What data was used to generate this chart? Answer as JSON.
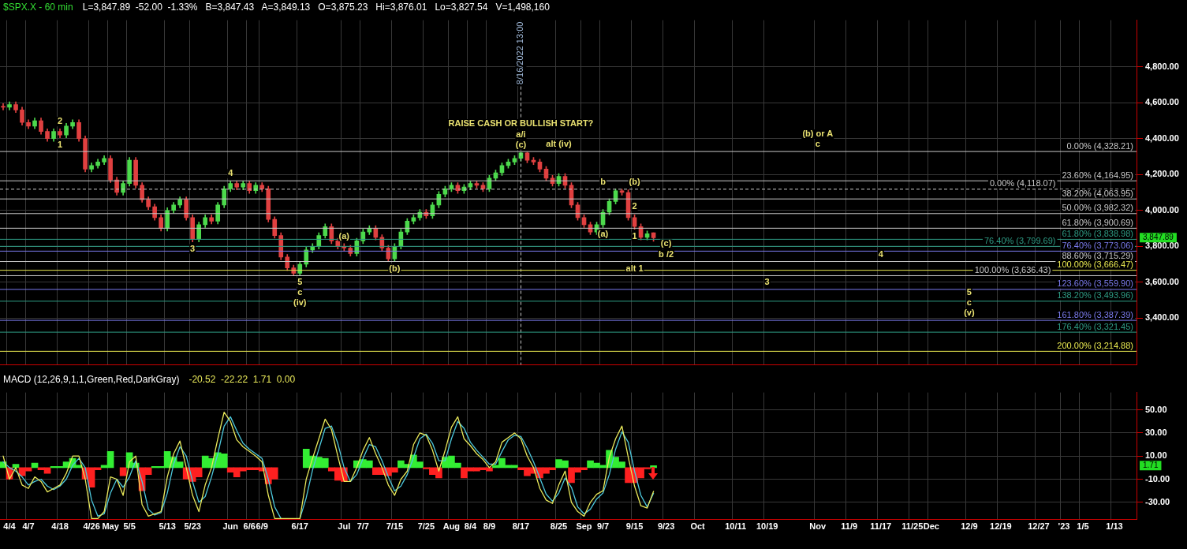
{
  "chart_data": [
    {
      "type": "candlestick",
      "title": "$SPX.X - 60 min",
      "subtitle": "L=3,847.89  -52.00  -1.33%   B=3,847.43   A=3,849.13   O=3,875.23   Hi=3,876.01   Lo=3,827.54   V=1,498,160",
      "categories": [
        null,
        "4/4",
        null,
        null,
        "4/7",
        null,
        null,
        null,
        null,
        "4/18",
        null,
        null,
        null,
        null,
        "4/26",
        null,
        null,
        "May",
        null,
        null,
        "5/5",
        null,
        null,
        null,
        null,
        null,
        "5/13",
        null,
        null,
        null,
        "5/23",
        null,
        null,
        null,
        null,
        null,
        "Jun",
        null,
        null,
        "6/6",
        null,
        "6/9",
        null,
        null,
        null,
        null,
        null,
        "6/17",
        null,
        null,
        null,
        null,
        null,
        null,
        "Jul",
        null,
        null,
        "7/7",
        null,
        null,
        null,
        null,
        "7/15",
        null,
        null,
        null,
        null,
        "7/25",
        null,
        null,
        null,
        "Aug",
        null,
        null,
        "8/4",
        null,
        null,
        "8/9",
        null,
        null,
        null,
        null,
        "8/17",
        null,
        null,
        null,
        null,
        null,
        "8/25",
        null,
        null,
        null,
        "Sep",
        null,
        null,
        "9/7",
        null,
        null,
        null,
        null,
        "9/15",
        null,
        null,
        null,
        null,
        "9/23",
        null,
        null,
        null,
        null,
        "Oct",
        null,
        null,
        null,
        null,
        null,
        "10/11",
        null,
        null,
        null,
        null,
        "10/19",
        null,
        null,
        null,
        null,
        null,
        null,
        null,
        "Nov",
        null,
        null,
        null,
        null,
        "11/9",
        null,
        null,
        null,
        null,
        "11/17",
        null,
        null,
        null,
        null,
        "11/25",
        null,
        null,
        "Dec",
        null,
        null,
        null,
        null,
        null,
        "12/9",
        null,
        null,
        null,
        null,
        "12/19",
        null,
        null,
        null,
        null,
        null,
        "12/27",
        null,
        null,
        null,
        "'23",
        null,
        null,
        "1/5",
        null,
        null,
        null,
        null,
        "1/13",
        null,
        null,
        null
      ],
      "ohlc": [
        [
          4580,
          4595,
          4560,
          4575
        ],
        [
          4575,
          4605,
          4560,
          4590
        ],
        [
          4590,
          4605,
          4545,
          4560
        ],
        [
          4560,
          4575,
          4475,
          4490
        ],
        [
          4490,
          4505,
          4455,
          4470
        ],
        [
          4470,
          4515,
          4455,
          4500
        ],
        [
          4500,
          4515,
          4425,
          4440
        ],
        [
          4440,
          4455,
          4385,
          4400
        ],
        [
          4400,
          4455,
          4385,
          4440
        ],
        [
          4440,
          4455,
          4405,
          4420
        ],
        [
          4420,
          4485,
          4405,
          4470
        ],
        [
          4470,
          4505,
          4455,
          4490
        ],
        [
          4490,
          4505,
          4385,
          4400
        ],
        [
          4400,
          4415,
          4215,
          4230
        ],
        [
          4230,
          4265,
          4215,
          4250
        ],
        [
          4250,
          4285,
          4235,
          4270
        ],
        [
          4270,
          4305,
          4255,
          4290
        ],
        [
          4290,
          4305,
          4155,
          4170
        ],
        [
          4170,
          4185,
          4085,
          4100
        ],
        [
          4100,
          4165,
          4085,
          4150
        ],
        [
          4150,
          4295,
          4135,
          4280
        ],
        [
          4280,
          4295,
          4125,
          4140
        ],
        [
          4140,
          4155,
          4045,
          4060
        ],
        [
          4060,
          4075,
          4005,
          4020
        ],
        [
          4020,
          4035,
          3945,
          3960
        ],
        [
          3960,
          3975,
          3885,
          3900
        ],
        [
          3900,
          4015,
          3885,
          4000
        ],
        [
          4000,
          4045,
          3985,
          4030
        ],
        [
          4030,
          4075,
          4015,
          4060
        ],
        [
          4060,
          4075,
          3945,
          3960
        ],
        [
          3960,
          3975,
          3825,
          3840
        ],
        [
          3840,
          3935,
          3825,
          3920
        ],
        [
          3920,
          3975,
          3905,
          3960
        ],
        [
          3960,
          3975,
          3925,
          3940
        ],
        [
          3940,
          4045,
          3925,
          4030
        ],
        [
          4030,
          4135,
          4015,
          4120
        ],
        [
          4120,
          4165,
          4105,
          4150
        ],
        [
          4150,
          4165,
          4115,
          4130
        ],
        [
          4130,
          4165,
          4115,
          4150
        ],
        [
          4150,
          4165,
          4095,
          4110
        ],
        [
          4110,
          4155,
          4095,
          4140
        ],
        [
          4140,
          4155,
          4105,
          4120
        ],
        [
          4120,
          4135,
          3935,
          3950
        ],
        [
          3950,
          3965,
          3845,
          3860
        ],
        [
          3860,
          3875,
          3725,
          3740
        ],
        [
          3740,
          3755,
          3665,
          3680
        ],
        [
          3680,
          3695,
          3636,
          3650
        ],
        [
          3650,
          3715,
          3640,
          3700
        ],
        [
          3700,
          3795,
          3685,
          3780
        ],
        [
          3780,
          3815,
          3765,
          3800
        ],
        [
          3800,
          3875,
          3785,
          3860
        ],
        [
          3860,
          3925,
          3845,
          3910
        ],
        [
          3910,
          3925,
          3815,
          3830
        ],
        [
          3830,
          3845,
          3785,
          3800
        ],
        [
          3800,
          3815,
          3775,
          3790
        ],
        [
          3790,
          3805,
          3745,
          3760
        ],
        [
          3760,
          3845,
          3745,
          3830
        ],
        [
          3830,
          3895,
          3815,
          3880
        ],
        [
          3880,
          3915,
          3865,
          3900
        ],
        [
          3900,
          3915,
          3835,
          3850
        ],
        [
          3850,
          3865,
          3775,
          3790
        ],
        [
          3790,
          3805,
          3715,
          3730
        ],
        [
          3730,
          3815,
          3715,
          3800
        ],
        [
          3800,
          3895,
          3785,
          3880
        ],
        [
          3880,
          3955,
          3865,
          3940
        ],
        [
          3940,
          3975,
          3925,
          3960
        ],
        [
          3960,
          4005,
          3945,
          3990
        ],
        [
          3990,
          4005,
          3955,
          3970
        ],
        [
          3970,
          4045,
          3955,
          4030
        ],
        [
          4030,
          4105,
          4015,
          4090
        ],
        [
          4090,
          4135,
          4075,
          4120
        ],
        [
          4120,
          4155,
          4105,
          4140
        ],
        [
          4140,
          4155,
          4095,
          4110
        ],
        [
          4110,
          4145,
          4095,
          4130
        ],
        [
          4130,
          4165,
          4115,
          4150
        ],
        [
          4150,
          4165,
          4125,
          4140
        ],
        [
          4140,
          4155,
          4105,
          4120
        ],
        [
          4120,
          4195,
          4105,
          4180
        ],
        [
          4180,
          4225,
          4165,
          4210
        ],
        [
          4210,
          4265,
          4195,
          4250
        ],
        [
          4250,
          4285,
          4235,
          4270
        ],
        [
          4270,
          4305,
          4255,
          4290
        ],
        [
          4290,
          4325,
          4275,
          4320
        ],
        [
          4320,
          4325,
          4265,
          4280
        ],
        [
          4280,
          4295,
          4255,
          4270
        ],
        [
          4270,
          4285,
          4215,
          4230
        ],
        [
          4230,
          4245,
          4165,
          4180
        ],
        [
          4180,
          4195,
          4135,
          4150
        ],
        [
          4150,
          4205,
          4135,
          4190
        ],
        [
          4190,
          4205,
          4125,
          4140
        ],
        [
          4140,
          4155,
          4015,
          4030
        ],
        [
          4030,
          4045,
          3945,
          3960
        ],
        [
          3960,
          3975,
          3905,
          3920
        ],
        [
          3920,
          3935,
          3865,
          3880
        ],
        [
          3880,
          3935,
          3865,
          3920
        ],
        [
          3920,
          4005,
          3905,
          3990
        ],
        [
          3990,
          4065,
          3975,
          4050
        ],
        [
          4050,
          4119,
          4035,
          4110
        ],
        [
          4110,
          4118,
          4085,
          4100
        ],
        [
          4100,
          4115,
          3945,
          3960
        ],
        [
          3960,
          3975,
          3895,
          3910
        ],
        [
          3910,
          3925,
          3835,
          3850
        ],
        [
          3850,
          3885,
          3835,
          3870
        ],
        [
          3875.23,
          3876.01,
          3827.54,
          3847.89
        ],
        null,
        null,
        null,
        null,
        null,
        null,
        null,
        null,
        null,
        null,
        null,
        null,
        null,
        null,
        null,
        null,
        null,
        null,
        null,
        null,
        null,
        null,
        null,
        null,
        null,
        null,
        null,
        null,
        null,
        null,
        null,
        null,
        null,
        null,
        null,
        null,
        null,
        null,
        null,
        null,
        null,
        null,
        null,
        null,
        null,
        null,
        null,
        null,
        null,
        null,
        null,
        null,
        null,
        null,
        null,
        null,
        null,
        null,
        null,
        null,
        null,
        null,
        null,
        null,
        null,
        null,
        null,
        null,
        null,
        null,
        null,
        null,
        null,
        null,
        null,
        null
      ],
      "colors": [
        "#e04040",
        "#4cd94c",
        "#e04040",
        "#e04040",
        "#e04040",
        "#4cd94c",
        "#e04040",
        "#e04040",
        "#4cd94c",
        "#e04040",
        "#4cd94c",
        "#4cd94c",
        "#e04040",
        "#e04040",
        "#4cd94c",
        "#4cd94c",
        "#4cd94c",
        "#e04040",
        "#e04040",
        "#4cd94c",
        "#4cd94c",
        "#e04040",
        "#e04040",
        "#e04040",
        "#e04040",
        "#e04040",
        "#4cd94c",
        "#4cd94c",
        "#4cd94c",
        "#e04040",
        "#e04040",
        "#4cd94c",
        "#4cd94c",
        "#e04040",
        "#4cd94c",
        "#4cd94c",
        "#4cd94c",
        "#e04040",
        "#4cd94c",
        "#e04040",
        "#4cd94c",
        "#e04040",
        "#e04040",
        "#e04040",
        "#e04040",
        "#e04040",
        "#e04040",
        "#4cd94c",
        "#4cd94c",
        "#4cd94c",
        "#4cd94c",
        "#4cd94c",
        "#e04040",
        "#e04040",
        "#e04040",
        "#e04040",
        "#4cd94c",
        "#4cd94c",
        "#4cd94c",
        "#e04040",
        "#e04040",
        "#e04040",
        "#4cd94c",
        "#4cd94c",
        "#4cd94c",
        "#4cd94c",
        "#4cd94c",
        "#e04040",
        "#4cd94c",
        "#4cd94c",
        "#4cd94c",
        "#4cd94c",
        "#e04040",
        "#4cd94c",
        "#4cd94c",
        "#e04040",
        "#e04040",
        "#4cd94c",
        "#4cd94c",
        "#4cd94c",
        "#4cd94c",
        "#4cd94c",
        "#4cd94c",
        "#e04040",
        "#e04040",
        "#e04040",
        "#e04040",
        "#e04040",
        "#4cd94c",
        "#e04040",
        "#e04040",
        "#e04040",
        "#e04040",
        "#e04040",
        "#4cd94c",
        "#4cd94c",
        "#4cd94c",
        "#4cd94c",
        "#e04040",
        "#e04040",
        "#e04040",
        "#e04040",
        "#4cd94c",
        "#e04040",
        null,
        null,
        null,
        null,
        null,
        null,
        null,
        null,
        null,
        null,
        null,
        null,
        null,
        null,
        null,
        null,
        null,
        null,
        null,
        null,
        null,
        null,
        null,
        null,
        null,
        null,
        null,
        null,
        null,
        null,
        null,
        null,
        null,
        null,
        null,
        null,
        null,
        null,
        null,
        null,
        null,
        null,
        null,
        null,
        null,
        null,
        null,
        null,
        null,
        null,
        null,
        null,
        null,
        null,
        null,
        null,
        null,
        null,
        null,
        null,
        null,
        null,
        null,
        null,
        null,
        null,
        null,
        null,
        null,
        null,
        null,
        null,
        null,
        null,
        null,
        null
      ],
      "ylim": [
        3140,
        5060
      ],
      "yticks": [
        {
          "value": 3400,
          "label": "3,400.00"
        },
        {
          "value": 3600,
          "label": "3,600.00"
        },
        {
          "value": 3800,
          "label": "3,800.00"
        },
        {
          "value": 4000,
          "label": "4,000.00"
        },
        {
          "value": 4200,
          "label": "4,200.00"
        },
        {
          "value": 4400,
          "label": "4,400.00"
        },
        {
          "value": 4600,
          "label": "4,600.00"
        },
        {
          "value": 4800,
          "label": "4,800.00"
        }
      ],
      "tick_labels": "y",
      "grid": true,
      "ref_lines": [
        {
          "axis": "x",
          "value": "8/17",
          "label": "8/16/2022 13:00",
          "color": "#c8c8c8",
          "line_style": "dashed"
        },
        {
          "axis": "y",
          "value": 4328.21,
          "label": "0.00% (4,328.21)",
          "color": "#c8c8c8"
        },
        {
          "axis": "y",
          "value": 4164.95,
          "label": "23.60% (4,164.95)",
          "color": "#c8c8c8"
        },
        {
          "axis": "y",
          "value": 4118.07,
          "label": "0.00% (4,118.07)",
          "color": "#c8c8c8",
          "line_style": "dashed"
        },
        {
          "axis": "y",
          "value": 4063.95,
          "label": "38.20% (4,063.95)",
          "color": "#c8c8c8"
        },
        {
          "axis": "y",
          "value": 3982.32,
          "label": "50.00% (3,982.32)",
          "color": "#c8c8c8"
        },
        {
          "axis": "y",
          "value": 3900.69,
          "label": "61.80% (3,900.69)",
          "color": "#c8c8c8"
        },
        {
          "axis": "y",
          "value": 3838.98,
          "label": "61.80% (3,838.98)",
          "color": "#2e9b84"
        },
        {
          "axis": "y",
          "value": 3799.69,
          "label": "76.40% (3,799.69)",
          "color": "#2e9b84"
        },
        {
          "axis": "y",
          "value": 3773.06,
          "label": "76.40% (3,773.06)",
          "color": "#7b7bee"
        },
        {
          "axis": "y",
          "value": 3715.29,
          "label": "88.60% (3,715.29)",
          "color": "#c8c8c8"
        },
        {
          "axis": "y",
          "value": 3666.47,
          "label": "100.00% (3,666.47)",
          "color": "#e8e850"
        },
        {
          "axis": "y",
          "value": 3636.43,
          "label": "100.00% (3,636.43)",
          "color": "#c8c8c8"
        },
        {
          "axis": "y",
          "value": 3559.9,
          "label": "123.60% (3,559.90)",
          "color": "#7b7bee"
        },
        {
          "axis": "y",
          "value": 3493.96,
          "label": "138.20% (3,493.96)",
          "color": "#2e9b84"
        },
        {
          "axis": "y",
          "value": 3387.39,
          "label": "161.80% (3,387.39)",
          "color": "#7b7bee"
        },
        {
          "axis": "y",
          "value": 3321.45,
          "label": "176.40% (3,321.45)",
          "color": "#2e9b84"
        },
        {
          "axis": "y",
          "value": 3214.88,
          "label": "200.00% (3,214.88)",
          "color": "#e8e850"
        }
      ],
      "annotations": [
        {
          "text": "1",
          "x": "4/18",
          "y": 4405
        },
        {
          "text": "2",
          "x": "4/18",
          "y": 4455
        },
        {
          "text": "3",
          "x": "5/23",
          "y": 3825
        },
        {
          "text": "4",
          "x": "Jun",
          "y": 4165
        },
        {
          "text": "5",
          "x": "6/17",
          "y": 3640
        },
        {
          "text": "c",
          "x": "6/17",
          "y": 3640
        },
        {
          "text": "(iv)",
          "x": "6/17",
          "y": 3640
        },
        {
          "text": "(a)",
          "x": "Jul",
          "y": 3815
        },
        {
          "text": "(b)",
          "x": "7/15",
          "y": 3715
        },
        {
          "text": "(c)",
          "x": "8/17",
          "y": 4325
        },
        {
          "text": "a/i",
          "x": "8/17",
          "y": 4325
        },
        {
          "text": "RAISE CASH OR BULLISH START?",
          "x": "8/17",
          "y": 4328.21
        },
        {
          "text": "alt (iv)",
          "x": "8/25",
          "y": 4328.21
        },
        {
          "text": "c",
          "x": "Nov",
          "y": 4328.21
        },
        {
          "text": "(b) or A",
          "x": "Nov",
          "y": 4328.21
        },
        {
          "text": "b",
          "x": "9/7",
          "y": 4118.07
        },
        {
          "text": "(b)",
          "x": "9/15",
          "y": 4118.07
        },
        {
          "text": "2",
          "x": "9/15",
          "y": 3982.32
        },
        {
          "text": "1",
          "x": "9/15",
          "y": 3895
        },
        {
          "text": "(a)",
          "x": "9/7",
          "y": 3905
        },
        {
          "text": "(c)",
          "x": "9/23",
          "y": 3773.06
        },
        {
          "text": "b /2",
          "x": "9/23",
          "y": 3715.29
        },
        {
          "text": "alt 1",
          "x": "9/15",
          "y": 3715.29
        },
        {
          "text": "4",
          "x": "11/17",
          "y": 3715.29
        },
        {
          "text": "3",
          "x": "10/19",
          "y": 3559.9
        },
        {
          "text": "(v)",
          "x": "12/9",
          "y": 3387.39
        },
        {
          "text": "c",
          "x": "12/9",
          "y": 3387.39
        },
        {
          "text": "5",
          "x": "12/9",
          "y": 3387.39
        },
        "3,847.89"
      ]
    },
    {
      "type": "line",
      "title": "MACD (12,26,9,1,1,Green,Red,DarkGray)",
      "subtitle": "-20.52  -22.22  1.71  0.00",
      "categories": [
        null,
        "4/4",
        null,
        null,
        "4/7",
        null,
        null,
        null,
        null,
        "4/18",
        null,
        null,
        null,
        null,
        "4/26",
        null,
        null,
        "May",
        null,
        null,
        "5/5",
        null,
        null,
        null,
        null,
        null,
        "5/13",
        null,
        null,
        null,
        "5/23",
        null,
        null,
        null,
        null,
        null,
        "Jun",
        null,
        null,
        "6/6",
        null,
        "6/9",
        null,
        null,
        null,
        null,
        null,
        "6/17",
        null,
        null,
        null,
        null,
        null,
        null,
        "Jul",
        null,
        null,
        "7/7",
        null,
        null,
        null,
        null,
        "7/15",
        null,
        null,
        null,
        null,
        "7/25",
        null,
        null,
        null,
        "Aug",
        null,
        null,
        "8/4",
        null,
        null,
        "8/9",
        null,
        null,
        null,
        null,
        "8/17",
        null,
        null,
        null,
        null,
        null,
        "8/25",
        null,
        null,
        null,
        "Sep",
        null,
        null,
        "9/7",
        null,
        null,
        null,
        null,
        "9/15",
        null,
        null,
        null,
        null,
        "9/23",
        null,
        null,
        null,
        null,
        "Oct",
        null,
        null,
        null,
        null,
        null,
        "10/11",
        null,
        null,
        null,
        null,
        "10/19",
        null,
        null,
        null,
        null,
        null,
        null,
        null,
        "Nov",
        null,
        null,
        null,
        null,
        "11/9",
        null,
        null,
        null,
        null,
        "11/17",
        null,
        null,
        null,
        null,
        "11/25",
        null,
        null,
        "Dec",
        null,
        null,
        null,
        null,
        null,
        "12/9",
        null,
        null,
        null,
        null,
        "12/19",
        null,
        null,
        null,
        null,
        null,
        "12/27",
        null,
        null,
        null,
        "'23",
        null,
        null,
        "1/5",
        null,
        null,
        null,
        null,
        "1/13",
        null,
        null,
        null
      ],
      "series": [
        {
          "type": "bar",
          "colors": [
            "#33ee33",
            "#ff2020",
            "#33ee33",
            "#ff2020",
            "#ff2020",
            "#33ee33",
            "#ff2020",
            "#ff2020",
            "#33ee33",
            "#33ee33",
            "#33ee33",
            "#33ee33",
            "#33ee33",
            "#ff2020",
            "#ff2020",
            "#ff2020",
            "#33ee33",
            "#33ee33",
            "#ff2020",
            "#ff2020",
            "#33ee33",
            "#33ee33",
            "#ff2020",
            "#ff2020",
            "#33ee33",
            "#33ee33",
            "#33ee33",
            "#33ee33",
            "#33ee33",
            "#ff2020",
            "#ff2020",
            "#ff2020",
            "#33ee33",
            "#33ee33",
            "#33ee33",
            "#33ee33",
            "#ff2020",
            "#ff2020",
            "#ff2020",
            "#ff2020",
            "#ff2020",
            "#ff2020",
            "#ff2020",
            "#ff2020",
            "#ff2020",
            "#ff2020",
            "#ff2020",
            "#ff2020",
            "#33ee33",
            "#33ee33",
            "#33ee33",
            "#33ee33",
            "#ff2020",
            "#ff2020",
            "#ff2020",
            "#ff2020",
            "#33ee33",
            "#33ee33",
            "#33ee33",
            "#ff2020",
            "#ff2020",
            "#ff2020",
            "#ff2020",
            "#33ee33",
            "#33ee33",
            "#33ee33",
            "#33ee33",
            "#ff2020",
            "#ff2020",
            "#ff2020",
            "#33ee33",
            "#33ee33",
            "#33ee33",
            "#ff2020",
            "#ff2020",
            "#ff2020",
            "#ff2020",
            "#ff2020",
            "#33ee33",
            "#33ee33",
            "#33ee33",
            "#33ee33",
            "#ff2020",
            "#ff2020",
            "#ff2020",
            "#ff2020",
            "#ff2020",
            "#ff2020",
            "#33ee33",
            "#33ee33",
            "#ff2020",
            "#ff2020",
            "#ff2020",
            "#33ee33",
            "#33ee33",
            "#33ee33",
            "#33ee33",
            "#33ee33",
            "#33ee33",
            "#ff2020",
            "#ff2020",
            "#ff2020",
            "#ff2020",
            "#33ee33",
            null,
            null,
            null,
            null,
            null,
            null,
            null,
            null,
            null,
            null,
            null,
            null,
            null,
            null,
            null,
            null,
            null,
            null,
            null,
            null,
            null,
            null,
            null,
            null,
            null,
            null,
            null,
            null,
            null,
            null,
            null,
            null,
            null,
            null,
            null,
            null,
            null,
            null,
            null,
            null,
            null,
            null,
            null,
            null,
            null,
            null,
            null,
            null,
            null,
            null,
            null,
            null,
            null,
            null,
            null,
            null,
            null,
            null,
            null,
            null,
            null,
            null,
            null,
            null,
            null,
            null,
            null,
            null,
            null,
            null,
            null,
            null,
            null,
            null,
            null,
            null
          ],
          "values": [
            5,
            -10,
            3,
            -7,
            -3,
            4,
            -2,
            -5,
            1,
            1,
            5,
            8,
            2,
            -10,
            -17,
            -2,
            2,
            14,
            null,
            -7,
            13,
            4,
            -20,
            -6,
            1,
            1,
            14,
            9,
            5,
            -10,
            -12,
            -8,
            10,
            8,
            13,
            12,
            -4,
            -8,
            -3,
            -2,
            -2,
            -3,
            -14,
            -10,
            null,
            null,
            null,
            null,
            16,
            10,
            9,
            8,
            -3,
            -11,
            -12,
            null,
            6,
            7,
            6,
            -6,
            -6,
            -7,
            -4,
            6,
            3,
            11,
            5,
            -1,
            -6,
            -9,
            9,
            10,
            4,
            -9,
            -3,
            -3,
            -2,
            -3,
            2,
            8,
            2,
            2,
            -2,
            -7,
            -5,
            -9,
            -5,
            -2,
            7,
            6,
            -13,
            -4,
            -2,
            6,
            4,
            2,
            15,
            9,
            5,
            -13,
            -13,
            -9,
            -1,
            1.71,
            null,
            null,
            null,
            null,
            null,
            null,
            null,
            null,
            null,
            null,
            null,
            null,
            null,
            null,
            null,
            null,
            null,
            null,
            null,
            null,
            null,
            null,
            null,
            null,
            null,
            null,
            null,
            null,
            null,
            null,
            null,
            null,
            null,
            null,
            null,
            null,
            null,
            null,
            null,
            null,
            null,
            null,
            null,
            null,
            null,
            null,
            null,
            null,
            null,
            null,
            null,
            null,
            null,
            null,
            null,
            null,
            null,
            null,
            null,
            null,
            null,
            null,
            null,
            null,
            null,
            null,
            null,
            null,
            null,
            null,
            null,
            null,
            null,
            null,
            null,
            null
          ]
        },
        {
          "type": "line",
          "color": "#e8e85a",
          "values": [
            10,
            -10,
            0,
            -15,
            -18,
            -8,
            -12,
            -21,
            -18,
            -15,
            -5,
            10,
            10,
            -10,
            -44,
            -44,
            -38,
            -8,
            -10,
            -24,
            5,
            10,
            -32,
            -42,
            -40,
            -38,
            -8,
            12,
            23,
            0,
            -24,
            -38,
            -15,
            0,
            25,
            48,
            40,
            24,
            18,
            14,
            10,
            5,
            -24,
            -44,
            -44,
            -44,
            -44,
            -44,
            -10,
            8,
            25,
            42,
            33,
            10,
            -12,
            -12,
            0,
            15,
            26,
            12,
            0,
            -15,
            -24,
            -10,
            -3,
            20,
            30,
            28,
            15,
            -3,
            15,
            35,
            44,
            25,
            19,
            12,
            7,
            0,
            5,
            22,
            26,
            30,
            25,
            10,
            0,
            -18,
            -28,
            -31,
            -15,
            -3,
            -30,
            -38,
            -42,
            -30,
            -23,
            -20,
            9,
            25,
            36,
            9,
            -16,
            -33,
            -35,
            -20.52,
            null,
            null,
            null,
            null,
            null,
            null,
            null,
            null,
            null,
            null,
            null,
            null,
            null,
            null,
            null,
            null,
            null,
            null,
            null,
            null,
            null,
            null,
            null,
            null,
            null,
            null,
            null,
            null,
            null,
            null,
            null,
            null,
            null,
            null,
            null,
            null,
            null,
            null,
            null,
            null,
            null,
            null,
            null,
            null,
            null,
            null,
            null,
            null,
            null,
            null,
            null,
            null,
            null,
            null,
            null,
            null,
            null,
            null,
            null,
            null,
            null,
            null,
            null,
            null,
            null,
            null,
            null,
            null,
            null,
            null,
            null,
            null,
            null,
            null,
            null,
            null
          ]
        },
        {
          "type": "line",
          "color": "#4cc8dc",
          "values": [
            5,
            0,
            -3,
            -8,
            -15,
            -12,
            -10,
            -16,
            -19,
            -16,
            -10,
            2,
            8,
            0,
            -28,
            -42,
            -40,
            -22,
            -10,
            -17,
            -8,
            6,
            -12,
            -36,
            -41,
            -39,
            -22,
            3,
            18,
            10,
            -12,
            -30,
            -25,
            -8,
            12,
            36,
            44,
            32,
            21,
            16,
            12,
            8,
            -10,
            -34,
            -44,
            null,
            null,
            -44,
            -26,
            -2,
            16,
            34,
            36,
            21,
            0,
            -12,
            -6,
            8,
            20,
            18,
            6,
            -8,
            -20,
            -16,
            -6,
            9,
            25,
            29,
            21,
            6,
            6,
            25,
            40,
            34,
            22,
            15,
            9,
            3,
            3,
            14,
            24,
            28,
            27,
            17,
            5,
            -9,
            -23,
            -29,
            -22,
            -9,
            -17,
            -34,
            -40,
            -36,
            -27,
            -22,
            -6,
            16,
            31,
            22,
            -3,
            -24,
            -34,
            -22.22,
            null,
            null,
            null,
            null,
            null,
            null,
            null,
            null,
            null,
            null,
            null,
            null,
            null,
            null,
            null,
            null,
            null,
            null,
            null,
            null,
            null,
            null,
            null,
            null,
            null,
            null,
            null,
            null,
            null,
            null,
            null,
            null,
            null,
            null,
            null,
            null,
            null,
            null,
            null,
            null,
            null,
            null,
            null,
            null,
            null,
            null,
            null,
            null,
            null,
            null,
            null,
            null,
            null,
            null,
            null,
            null,
            null,
            null,
            null,
            null,
            null,
            null,
            null,
            null,
            null,
            null,
            null,
            null,
            null,
            null,
            null,
            null,
            null,
            null,
            null,
            null
          ]
        }
      ],
      "ylim": [
        -45,
        65
      ],
      "yticks": [
        {
          "value": -30,
          "label": "-30.00"
        },
        {
          "value": -10,
          "label": "-10.00"
        },
        {
          "value": 10,
          "label": "10.00"
        },
        {
          "value": 30,
          "label": "30.00"
        },
        {
          "value": 50,
          "label": "50.00"
        }
      ],
      "grid": true,
      "annotations": [
        "1.71"
      ]
    }
  ]
}
